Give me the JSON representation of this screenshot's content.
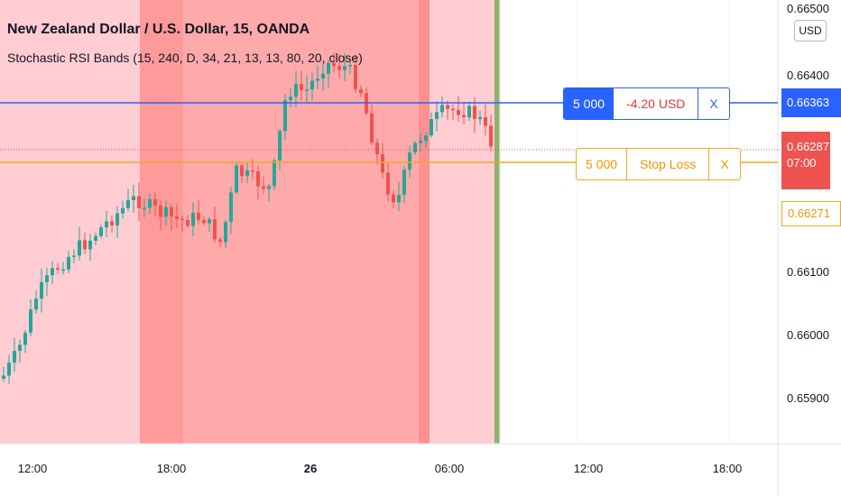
{
  "header": {
    "title": "New Zealand Dollar / U.S. Dollar, 15, OANDA",
    "indicator": "Stochastic RSI Bands (15, 240, D, 34, 21, 13, 13, 80, 20, close)"
  },
  "currency_button": "USD",
  "price_axis": {
    "ticks": [
      "0.66500",
      "0.66400",
      "0.66100",
      "0.66000",
      "0.65900"
    ]
  },
  "time_axis": {
    "ticks": [
      {
        "label": "12:00",
        "bold": false
      },
      {
        "label": "18:00",
        "bold": false
      },
      {
        "label": "26",
        "bold": true
      },
      {
        "label": "06:00",
        "bold": false
      },
      {
        "label": "12:00",
        "bold": false
      },
      {
        "label": "18:00",
        "bold": false
      }
    ]
  },
  "take_profit_order": {
    "quantity": "5 000",
    "pnl": "-4.20 USD",
    "close": "X",
    "price": "0.66363"
  },
  "stop_loss_order": {
    "quantity": "5 000",
    "label": "Stop Loss",
    "close": "X",
    "price": "0.66271"
  },
  "last_price": {
    "price": "0.66287",
    "countdown": "07:00"
  },
  "colors": {
    "up": "#26a69a",
    "down": "#ef5350",
    "tp_line": "#2962ff",
    "sl_line": "#f5a623",
    "band_light": "#ffcdd2",
    "band_mid": "#ffa8a8",
    "band_dark": "#ff8a8a",
    "end_marker": "#8db36e"
  }
}
